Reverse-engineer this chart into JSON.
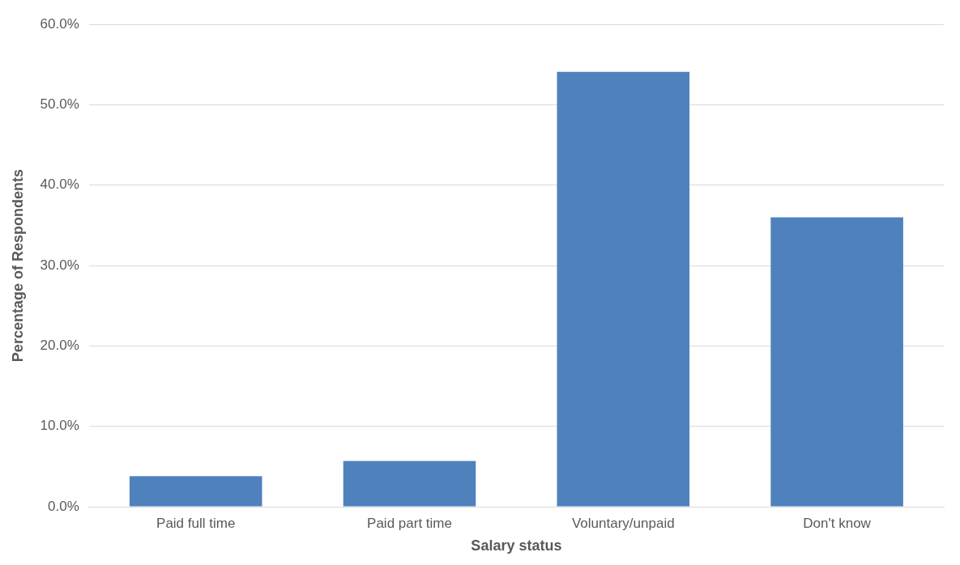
{
  "chart_data": {
    "type": "bar",
    "xlabel": "Salary status",
    "ylabel": "Percentage of Respondents",
    "categories": [
      "Paid full time",
      "Paid part time",
      "Voluntary/unpaid",
      "Don't know"
    ],
    "values": [
      3.8,
      5.7,
      54.1,
      36.0
    ],
    "color": "#4f81bd",
    "ylim": [
      0,
      60
    ],
    "yticks": [
      {
        "value": 0,
        "label": "0.0%"
      },
      {
        "value": 10,
        "label": "10.0%"
      },
      {
        "value": 20,
        "label": "20.0%"
      },
      {
        "value": 30,
        "label": "30.0%"
      },
      {
        "value": 40,
        "label": "40.0%"
      },
      {
        "value": 50,
        "label": "50.0%"
      },
      {
        "value": 60,
        "label": "60.0%"
      }
    ],
    "grid": "y",
    "legend": false
  }
}
